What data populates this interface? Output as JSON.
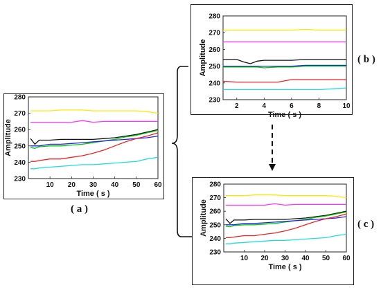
{
  "labels": {
    "a": "( a )",
    "b": "( b )",
    "c": "( c )"
  },
  "chart_data": [
    {
      "id": "a",
      "type": "line",
      "xlabel": "Time ( s )",
      "ylabel": "Amplitude",
      "xlim": [
        0,
        60
      ],
      "ylim": [
        230,
        280
      ],
      "xticks": [
        10,
        20,
        30,
        40,
        50,
        60
      ],
      "yticks": [
        230,
        240,
        250,
        260,
        270,
        280
      ],
      "x": [
        1,
        3,
        5,
        10,
        15,
        20,
        25,
        30,
        35,
        40,
        45,
        50,
        55,
        60
      ],
      "series": [
        {
          "color": "#ffe800",
          "values": [
            271.5,
            271.5,
            271.5,
            271.5,
            272,
            272,
            272,
            271.5,
            271.5,
            271.5,
            271.5,
            271.5,
            271,
            270
          ]
        },
        {
          "color": "#ff33ff",
          "values": [
            264.5,
            264.5,
            264.5,
            264.5,
            264.5,
            264.5,
            265.5,
            264.5,
            265,
            265,
            265,
            265,
            265,
            265
          ]
        },
        {
          "color": "#111111",
          "values": [
            254.5,
            251,
            253.5,
            253.5,
            254,
            254,
            254,
            254,
            254.5,
            255,
            256,
            257,
            258.5,
            260
          ]
        },
        {
          "color": "#00cc00",
          "values": [
            249,
            248.5,
            249.5,
            250,
            250,
            250.5,
            251,
            252,
            253,
            254,
            255.5,
            256.5,
            258,
            259.5
          ]
        },
        {
          "color": "#2222ee",
          "values": [
            250,
            250,
            250,
            251,
            251,
            251.5,
            252,
            252.5,
            253,
            253.5,
            254,
            254.5,
            255,
            256
          ]
        },
        {
          "color": "#ee2222",
          "values": [
            240.5,
            240.5,
            241,
            242,
            242,
            243,
            244,
            245.5,
            247.5,
            250,
            252.5,
            254.5,
            256,
            258
          ]
        },
        {
          "color": "#22dddd",
          "values": [
            236,
            236,
            236.5,
            237,
            237.5,
            238,
            238.5,
            238.5,
            239,
            239.5,
            240,
            240.5,
            242,
            243
          ]
        }
      ]
    },
    {
      "id": "b",
      "type": "line",
      "xlabel": "Time ( s )",
      "ylabel": "Amplitude",
      "xlim": [
        1,
        10
      ],
      "ylim": [
        230,
        280
      ],
      "xticks": [
        2,
        4,
        6,
        8,
        10
      ],
      "yticks": [
        230,
        240,
        250,
        260,
        270,
        280
      ],
      "x": [
        1,
        2,
        2.5,
        3,
        3.5,
        4,
        5,
        6,
        7,
        8,
        9,
        10
      ],
      "series": [
        {
          "color": "#ffe800",
          "values": [
            271.5,
            271.5,
            271.5,
            271.5,
            271.5,
            271.5,
            271.5,
            271.5,
            272,
            271.5,
            271.5,
            271.5
          ]
        },
        {
          "color": "#ff33ff",
          "values": [
            264.5,
            264.5,
            264.5,
            264.5,
            264.5,
            264.5,
            264.5,
            264.5,
            264.5,
            264.5,
            264.5,
            264.5
          ]
        },
        {
          "color": "#111111",
          "values": [
            254,
            254,
            252.5,
            251.5,
            253,
            253.5,
            253.5,
            253.5,
            254,
            254,
            254,
            254
          ]
        },
        {
          "color": "#00cc00",
          "values": [
            249.5,
            249.5,
            249.5,
            249.5,
            249.5,
            249,
            249.5,
            249.5,
            250,
            250,
            250,
            250
          ]
        },
        {
          "color": "#2222ee",
          "values": [
            250,
            250,
            250,
            250,
            250,
            250,
            250,
            250,
            250.5,
            250.5,
            250.5,
            250.5
          ]
        },
        {
          "color": "#ee2222",
          "values": [
            241,
            240.5,
            240.5,
            240.5,
            240.5,
            240.5,
            240.5,
            242,
            242,
            242,
            242,
            242
          ]
        },
        {
          "color": "#22dddd",
          "values": [
            236,
            236,
            236,
            236,
            236,
            236,
            236,
            236,
            236,
            236,
            236.5,
            237
          ]
        }
      ]
    },
    {
      "id": "c",
      "type": "line",
      "xlabel": "Time ( s )",
      "ylabel": "Amplitude",
      "xlim": [
        0,
        60
      ],
      "ylim": [
        230,
        280
      ],
      "xticks": [
        10,
        20,
        30,
        40,
        50,
        60
      ],
      "yticks": [
        230,
        240,
        250,
        260,
        270,
        280
      ],
      "x": [
        1,
        3,
        5,
        10,
        15,
        20,
        25,
        30,
        35,
        40,
        45,
        50,
        55,
        60
      ],
      "series": [
        {
          "color": "#ffe800",
          "values": [
            271.5,
            271.5,
            271.5,
            271.5,
            272,
            272,
            272,
            271.5,
            271.5,
            271.5,
            271.5,
            271.5,
            271,
            270
          ]
        },
        {
          "color": "#ff33ff",
          "values": [
            264.5,
            264.5,
            264.5,
            264.5,
            264.5,
            264.5,
            265.5,
            264.5,
            265,
            265,
            265,
            265,
            265,
            265
          ]
        },
        {
          "color": "#111111",
          "values": [
            254.5,
            251,
            253.5,
            253.5,
            254,
            254,
            254,
            254,
            254.5,
            255,
            256,
            257,
            258.5,
            260
          ]
        },
        {
          "color": "#00cc00",
          "values": [
            249,
            248.5,
            249.5,
            250,
            250,
            250.5,
            251,
            252,
            253,
            254,
            255.5,
            256.5,
            258,
            259.5
          ]
        },
        {
          "color": "#2222ee",
          "values": [
            250,
            250,
            250,
            251,
            251,
            251.5,
            252,
            252.5,
            253,
            253.5,
            254,
            254.5,
            255,
            256
          ]
        },
        {
          "color": "#ee2222",
          "values": [
            240.5,
            240.5,
            241,
            242,
            242,
            243,
            244,
            245.5,
            247.5,
            250,
            252.5,
            254.5,
            256,
            258
          ]
        },
        {
          "color": "#22dddd",
          "values": [
            236,
            236,
            236.5,
            237,
            237.5,
            238,
            238.5,
            238.5,
            239,
            239.5,
            240,
            240.5,
            242,
            243
          ]
        }
      ]
    }
  ]
}
